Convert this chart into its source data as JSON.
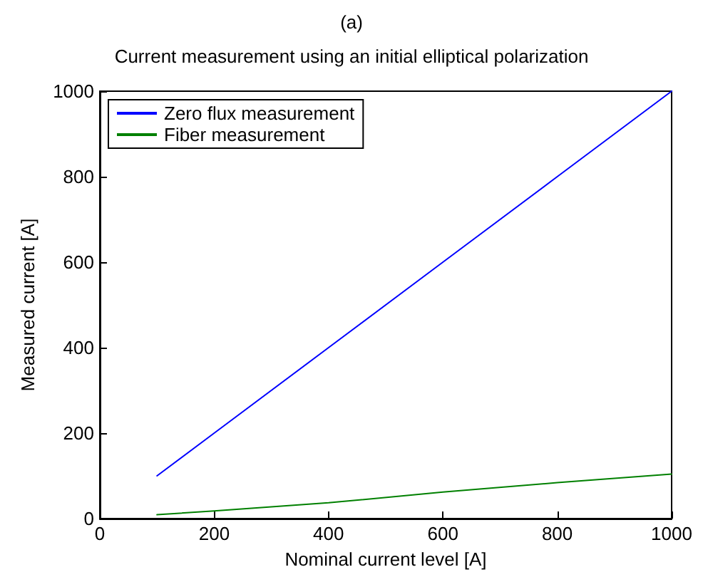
{
  "chart_data": {
    "type": "line",
    "title": "Current measurement using an initial elliptical polarization",
    "annotations": [
      "(a)"
    ],
    "xlabel": "Nominal current level [A]",
    "ylabel": "Measured current [A]",
    "x": [
      100,
      200,
      400,
      600,
      800,
      1000
    ],
    "series": [
      {
        "name": "Zero flux measurement",
        "color": "#0000ff",
        "values": [
          100,
          200,
          400,
          600,
          800,
          1000
        ]
      },
      {
        "name": "Fiber measurement",
        "color": "#008000",
        "values": [
          9,
          18,
          37,
          62,
          84,
          104
        ]
      }
    ],
    "xlim": [
      0,
      1000
    ],
    "xticks": [
      0,
      200,
      400,
      600,
      800,
      1000
    ],
    "ylim": [
      0,
      1000
    ],
    "yticks": [
      0,
      200,
      400,
      600,
      800,
      1000
    ],
    "legend": "top left",
    "marker": "none",
    "line_style": "solid"
  }
}
